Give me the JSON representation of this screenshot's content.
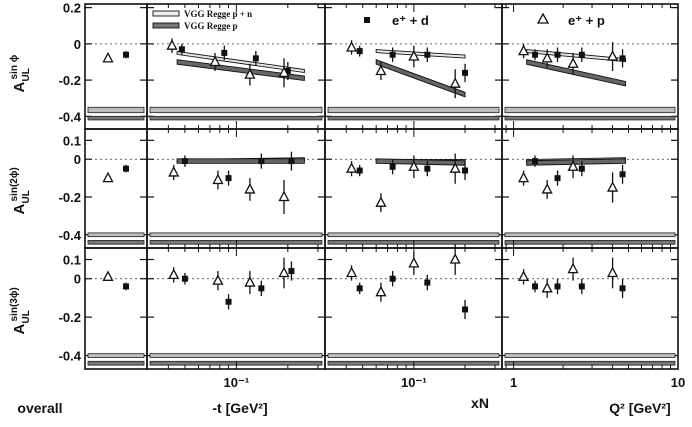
{
  "chart_data": {
    "type": "scatter",
    "grid": false,
    "legend_placement": "top",
    "legend": {
      "bands": [
        {
          "label": "VGG Regge  p + n",
          "style": "hollow-band"
        },
        {
          "label": "VGG Regge  p",
          "style": "shaded-band"
        }
      ],
      "series": [
        {
          "symbol": "square",
          "text": "e⁺ + d"
        },
        {
          "symbol": "triangle",
          "text": "e⁺ + p"
        }
      ]
    },
    "rows": [
      {
        "id": "sin1",
        "ylabel_main": "A",
        "ylabel_sub": "UL",
        "ylabel_sup": "sin ϕ",
        "ylim": [
          -0.47,
          0.22
        ],
        "yticks": [
          {
            "v": 0.2,
            "t": "0.2"
          },
          {
            "v": 0,
            "t": "0"
          },
          {
            "v": -0.2,
            "t": "-0.2"
          },
          {
            "v": -0.4,
            "t": "-0.4"
          }
        ]
      },
      {
        "id": "sin2",
        "ylabel_main": "A",
        "ylabel_sub": "UL",
        "ylabel_sup": "sin(2ϕ)",
        "ylim": [
          -0.47,
          0.16
        ],
        "yticks": [
          {
            "v": 0.1,
            "t": "0.1"
          },
          {
            "v": 0,
            "t": "0"
          },
          {
            "v": -0.2,
            "t": "-0.2"
          },
          {
            "v": -0.4,
            "t": "-0.4"
          }
        ]
      },
      {
        "id": "sin3",
        "ylabel_main": "A",
        "ylabel_sub": "UL",
        "ylabel_sup": "sin(3ϕ)",
        "ylim": [
          -0.47,
          0.16
        ],
        "yticks": [
          {
            "v": 0.1,
            "t": "0.1"
          },
          {
            "v": 0,
            "t": "0"
          },
          {
            "v": -0.2,
            "t": "-0.2"
          },
          {
            "v": -0.4,
            "t": "-0.4"
          }
        ]
      }
    ],
    "columns": [
      {
        "id": "overall",
        "xlabel": "overall",
        "xscale": "category",
        "xticks": []
      },
      {
        "id": "t",
        "xlabel": "-t [GeV²]",
        "xscale": "log",
        "xlim": [
          0.03,
          0.33
        ],
        "xticks": [
          {
            "v": 0.1,
            "t": "10⁻¹"
          }
        ]
      },
      {
        "id": "xN",
        "xlabel": "xN",
        "xscale": "log",
        "xlim": [
          0.03,
          0.33
        ],
        "xticks": [
          {
            "v": 0.1,
            "t": "10⁻¹"
          }
        ]
      },
      {
        "id": "Q2",
        "xlabel": "Q² [GeV²]",
        "xscale": "log",
        "xlim": [
          0.85,
          10
        ],
        "xticks": [
          {
            "v": 1,
            "t": "1"
          },
          {
            "v": 10,
            "t": "10"
          }
        ]
      }
    ],
    "series_points": {
      "deuteron": {
        "overall": {
          "sin1": [
            [
              0,
              -0.06,
              0.02
            ]
          ],
          "sin2": [
            [
              0,
              -0.05,
              0.02
            ]
          ],
          "sin3": [
            [
              0,
              -0.04,
              0.02
            ]
          ]
        },
        "t": {
          "sin1": [
            [
              0.048,
              -0.03,
              0.03
            ],
            [
              0.085,
              -0.05,
              0.04
            ],
            [
              0.13,
              -0.08,
              0.04
            ],
            [
              0.2,
              -0.15,
              0.05
            ]
          ],
          "sin2": [
            [
              0.05,
              -0.01,
              0.03
            ],
            [
              0.09,
              -0.1,
              0.04
            ],
            [
              0.14,
              -0.01,
              0.04
            ],
            [
              0.21,
              -0.01,
              0.05
            ]
          ],
          "sin3": [
            [
              0.05,
              0.0,
              0.03
            ],
            [
              0.09,
              -0.12,
              0.04
            ],
            [
              0.14,
              -0.05,
              0.04
            ],
            [
              0.21,
              0.04,
              0.05
            ]
          ]
        },
        "xN": {
          "sin1": [
            [
              0.048,
              -0.04,
              0.03
            ],
            [
              0.075,
              -0.06,
              0.04
            ],
            [
              0.12,
              -0.06,
              0.04
            ],
            [
              0.2,
              -0.16,
              0.05
            ]
          ],
          "sin2": [
            [
              0.048,
              -0.06,
              0.03
            ],
            [
              0.075,
              -0.04,
              0.04
            ],
            [
              0.12,
              -0.05,
              0.04
            ],
            [
              0.2,
              -0.06,
              0.05
            ]
          ],
          "sin3": [
            [
              0.048,
              -0.05,
              0.03
            ],
            [
              0.075,
              0.0,
              0.04
            ],
            [
              0.12,
              -0.02,
              0.04
            ],
            [
              0.2,
              -0.16,
              0.05
            ]
          ]
        },
        "Q2": {
          "sin1": [
            [
              1.35,
              -0.06,
              0.03
            ],
            [
              1.85,
              -0.06,
              0.04
            ],
            [
              2.6,
              -0.06,
              0.04
            ],
            [
              4.6,
              -0.08,
              0.05
            ]
          ],
          "sin2": [
            [
              1.35,
              -0.01,
              0.03
            ],
            [
              1.85,
              -0.1,
              0.04
            ],
            [
              2.6,
              -0.05,
              0.04
            ],
            [
              4.6,
              -0.08,
              0.05
            ]
          ],
          "sin3": [
            [
              1.35,
              -0.04,
              0.03
            ],
            [
              1.85,
              -0.04,
              0.04
            ],
            [
              2.6,
              -0.04,
              0.04
            ],
            [
              4.6,
              -0.05,
              0.05
            ]
          ]
        }
      },
      "proton": {
        "overall": {
          "sin1": [
            [
              0,
              -0.08,
              0.02
            ]
          ],
          "sin2": [
            [
              0,
              -0.1,
              0.02
            ]
          ],
          "sin3": [
            [
              0,
              0.01,
              0.02
            ]
          ]
        },
        "t": {
          "sin1": [
            [
              0.042,
              -0.01,
              0.04
            ],
            [
              0.075,
              -0.1,
              0.05
            ],
            [
              0.12,
              -0.17,
              0.06
            ],
            [
              0.19,
              -0.16,
              0.08
            ]
          ],
          "sin2": [
            [
              0.043,
              -0.07,
              0.04
            ],
            [
              0.078,
              -0.11,
              0.05
            ],
            [
              0.12,
              -0.16,
              0.06
            ],
            [
              0.19,
              -0.2,
              0.09
            ]
          ],
          "sin3": [
            [
              0.043,
              0.02,
              0.04
            ],
            [
              0.078,
              -0.01,
              0.05
            ],
            [
              0.12,
              -0.02,
              0.06
            ],
            [
              0.19,
              0.03,
              0.08
            ]
          ]
        },
        "xN": {
          "sin1": [
            [
              0.043,
              -0.02,
              0.04
            ],
            [
              0.064,
              -0.15,
              0.05
            ],
            [
              0.1,
              -0.07,
              0.06
            ],
            [
              0.175,
              -0.22,
              0.08
            ]
          ],
          "sin2": [
            [
              0.043,
              -0.05,
              0.04
            ],
            [
              0.064,
              -0.23,
              0.05
            ],
            [
              0.1,
              -0.04,
              0.06
            ],
            [
              0.175,
              -0.05,
              0.08
            ]
          ],
          "sin3": [
            [
              0.043,
              0.03,
              0.04
            ],
            [
              0.064,
              -0.07,
              0.05
            ],
            [
              0.1,
              0.08,
              0.06
            ],
            [
              0.175,
              0.1,
              0.08
            ]
          ]
        },
        "Q2": {
          "sin1": [
            [
              1.15,
              -0.04,
              0.04
            ],
            [
              1.6,
              -0.08,
              0.05
            ],
            [
              2.3,
              -0.11,
              0.06
            ],
            [
              4.0,
              -0.07,
              0.08
            ]
          ],
          "sin2": [
            [
              1.15,
              -0.1,
              0.04
            ],
            [
              1.6,
              -0.16,
              0.05
            ],
            [
              2.3,
              -0.04,
              0.06
            ],
            [
              4.0,
              -0.15,
              0.08
            ]
          ],
          "sin3": [
            [
              1.15,
              0.01,
              0.04
            ],
            [
              1.6,
              -0.05,
              0.05
            ],
            [
              2.3,
              0.05,
              0.06
            ],
            [
              4.0,
              0.03,
              0.08
            ]
          ]
        }
      }
    },
    "theory_bands": {
      "t": {
        "sin1": {
          "pn": [
            [
              0.045,
              -0.05
            ],
            [
              0.25,
              -0.15
            ]
          ],
          "p": [
            [
              0.045,
              -0.1
            ],
            [
              0.25,
              -0.19
            ]
          ]
        },
        "sin2": {
          "pn": [
            [
              0.045,
              -0.01
            ],
            [
              0.25,
              0.0
            ]
          ],
          "p": [
            [
              0.045,
              -0.01
            ],
            [
              0.25,
              -0.01
            ]
          ]
        }
      },
      "xN": {
        "sin1": {
          "pn": [
            [
              0.06,
              -0.04
            ],
            [
              0.2,
              -0.07
            ]
          ],
          "p": [
            [
              0.06,
              -0.1
            ],
            [
              0.2,
              -0.28
            ]
          ]
        },
        "sin2": {
          "pn": [
            [
              0.06,
              -0.01
            ],
            [
              0.2,
              -0.01
            ]
          ],
          "p": [
            [
              0.06,
              -0.01
            ],
            [
              0.2,
              -0.02
            ]
          ]
        }
      },
      "Q2": {
        "sin1": {
          "pn": [
            [
              1.2,
              -0.04
            ],
            [
              4.8,
              -0.09
            ]
          ],
          "p": [
            [
              1.2,
              -0.1
            ],
            [
              4.8,
              -0.22
            ]
          ]
        },
        "sin2": {
          "pn": [
            [
              1.2,
              -0.01
            ],
            [
              4.8,
              0.0
            ]
          ],
          "p": [
            [
              1.2,
              -0.02
            ],
            [
              4.8,
              -0.01
            ]
          ]
        }
      }
    },
    "systematic_bands": {
      "sin1": [
        [
          -0.35,
          -0.38
        ],
        [
          -0.4,
          -0.42
        ]
      ],
      "sin2": [
        [
          -0.39,
          -0.41
        ],
        [
          -0.43,
          -0.45
        ]
      ],
      "sin3": [
        [
          -0.39,
          -0.41
        ],
        [
          -0.43,
          -0.45
        ]
      ]
    }
  }
}
